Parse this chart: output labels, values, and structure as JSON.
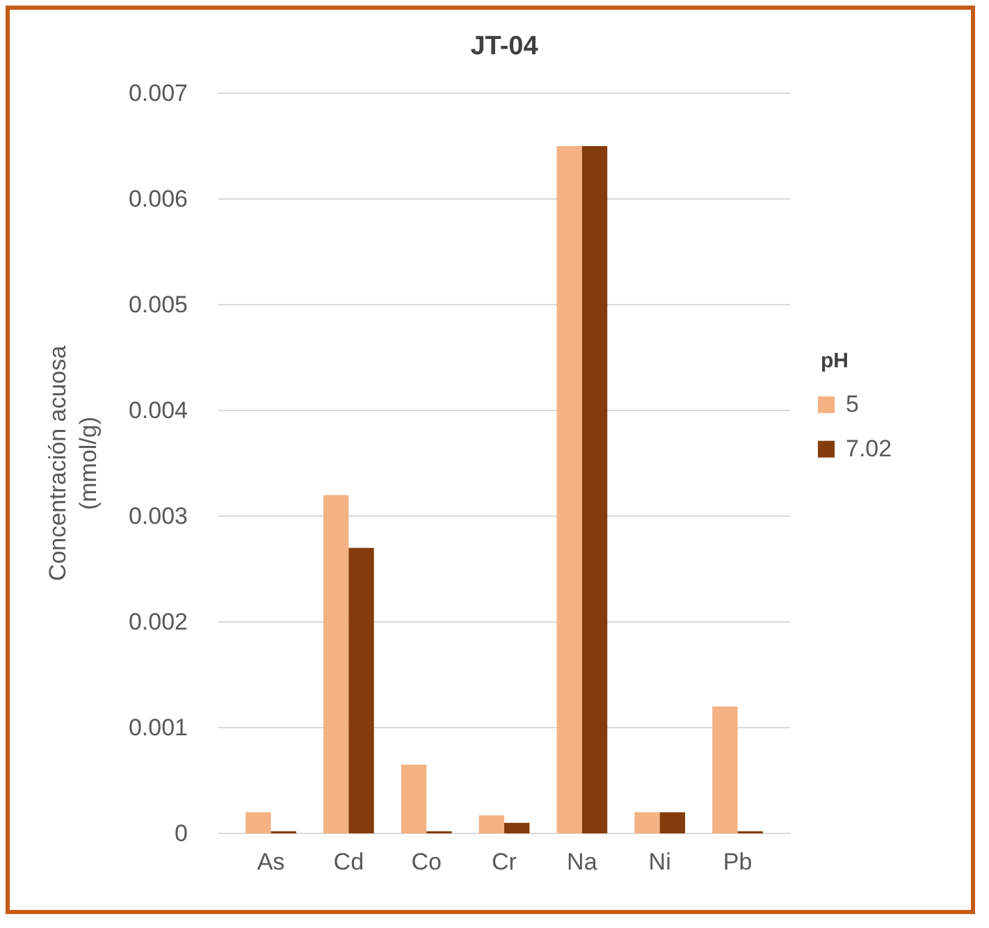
{
  "chart_data": {
    "type": "bar",
    "title": "JT-04",
    "ylabel": "Concentración acuosa (mmol/g)",
    "legend_title": "pH",
    "categories": [
      "As",
      "Cd",
      "Co",
      "Cr",
      "Na",
      "Ni",
      "Pb"
    ],
    "series": [
      {
        "name": "5",
        "color": "#f4b183",
        "values": [
          0.0002,
          0.0032,
          0.00065,
          0.00017,
          0.0065,
          0.0002,
          0.0012
        ]
      },
      {
        "name": "7.02",
        "color": "#843c0c",
        "values": [
          2e-05,
          0.0027,
          2e-05,
          0.0001,
          0.0065,
          0.0002,
          2e-05
        ]
      }
    ],
    "ylim": [
      0,
      0.007
    ],
    "yticks": [
      0,
      0.001,
      0.002,
      0.003,
      0.004,
      0.005,
      0.006,
      0.007
    ],
    "grid": "y",
    "legend": "right"
  }
}
